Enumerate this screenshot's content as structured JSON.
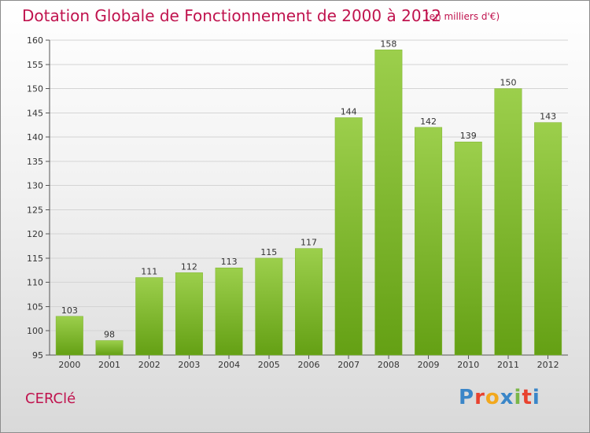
{
  "header": {
    "title": "Dotation Globale de Fonctionnement de 2000 à 2012",
    "subtitle": "(en milliers d'€)"
  },
  "footer": {
    "commune": "CERClé",
    "logo": [
      "P",
      "r",
      "o",
      "x",
      "i",
      "t",
      "i"
    ],
    "logo_colors": [
      "#3a86c8",
      "#e8422f",
      "#f2a81d",
      "#3a86c8",
      "#7ab648",
      "#e8422f",
      "#3a86c8"
    ]
  },
  "chart_data": {
    "type": "bar",
    "title": "Dotation Globale de Fonctionnement de 2000 à 2012",
    "subtitle": "(en milliers d'€)",
    "categories": [
      "2000",
      "2001",
      "2002",
      "2003",
      "2004",
      "2005",
      "2006",
      "2007",
      "2008",
      "2009",
      "2010",
      "2011",
      "2012"
    ],
    "values": [
      103,
      98,
      111,
      112,
      113,
      115,
      117,
      144,
      158,
      142,
      139,
      150,
      143
    ],
    "ylim": [
      95,
      160
    ],
    "yticks": [
      95,
      100,
      105,
      110,
      115,
      120,
      125,
      130,
      135,
      140,
      145,
      150,
      155,
      160
    ],
    "grid": true,
    "bar_color_top": "#9ccf4c",
    "bar_color_bottom": "#64a014",
    "xlabel": "",
    "ylabel": ""
  }
}
